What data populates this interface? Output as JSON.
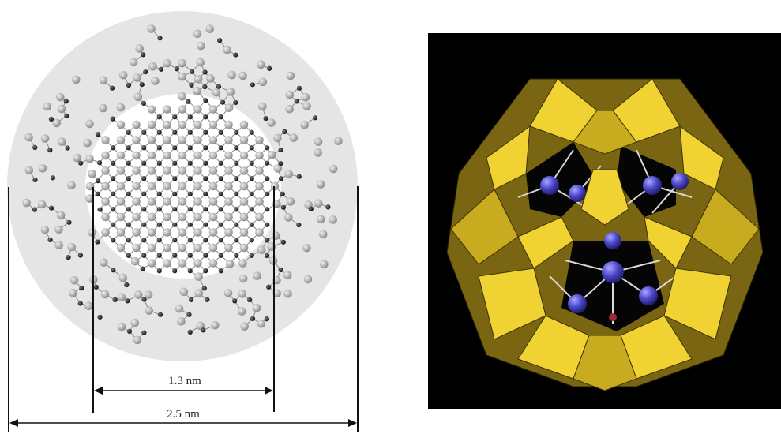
{
  "left_figure": {
    "inner_dimension": "1.3 nm",
    "outer_dimension": "2.5 nm"
  },
  "colors": {
    "outer_disk": "#e5e5e5",
    "inner_disk": "#ffffff",
    "large_atom": "#a9a9a9",
    "small_atom": "#2e2e2e",
    "bond": "#8a8a8a",
    "right_background": "#000000",
    "polyhedron_light": "#f1d233",
    "polyhedron_mid": "#c8ab1f",
    "polyhedron_dark": "#7a6612",
    "inner_sphere": "#4b46c8"
  }
}
